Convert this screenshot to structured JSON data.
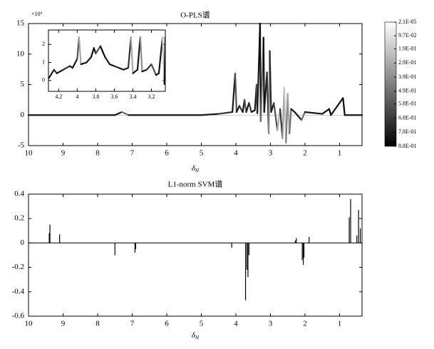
{
  "chart_data": [
    {
      "type": "line",
      "title": "O-PLS谱",
      "y_exponent_label": "×10⁹",
      "xlabel": "δ",
      "xlabel_sub": "H",
      "xlim": [
        10,
        0.35
      ],
      "xticks": [
        10,
        9,
        8,
        7,
        6,
        5,
        4,
        3,
        2,
        1
      ],
      "ylim": [
        -5,
        15
      ],
      "yticks": [
        -5,
        0,
        5,
        10,
        15
      ],
      "x": [
        10,
        7.5,
        7.3,
        7.1,
        5,
        4.5,
        4.1,
        4.02,
        3.98,
        3.9,
        3.8,
        3.75,
        3.7,
        3.62,
        3.55,
        3.45,
        3.4,
        3.38,
        3.3,
        3.28,
        3.2,
        3.18,
        3.1,
        3.05,
        3.02,
        2.98,
        2.9,
        2.8,
        2.72,
        2.65,
        2.6,
        2.55,
        2.5,
        2.45,
        2.4,
        2.3,
        2.1,
        2.0,
        1.5,
        1.3,
        1.25,
        0.9,
        0.85,
        0.35
      ],
      "values": [
        0,
        0,
        0.5,
        0,
        0,
        0.2,
        0.5,
        6.8,
        0.5,
        1.5,
        0.5,
        2.5,
        0.5,
        2,
        0.5,
        0.8,
        5,
        0.3,
        15,
        -1,
        12.7,
        0.5,
        7,
        -3,
        10.5,
        0.5,
        2,
        -2.5,
        1,
        -3.8,
        4.5,
        -4.5,
        3.5,
        -3,
        1,
        0.5,
        -0.8,
        0.5,
        0.2,
        1,
        0,
        2.8,
        0,
        0
      ],
      "correlation": [
        0.8,
        0.8,
        0.5,
        0.8,
        0.8,
        0.7,
        0.8,
        0.6,
        0.8,
        0.7,
        0.8,
        0.6,
        0.8,
        0.7,
        0.8,
        0.8,
        0.6,
        0.8,
        0.85,
        0.5,
        0.85,
        0.8,
        0.7,
        0.4,
        0.75,
        0.8,
        0.6,
        0.3,
        0.7,
        0.35,
        0.2,
        0.45,
        0.3,
        0.5,
        0.8,
        0.8,
        0.5,
        0.8,
        0.8,
        0.85,
        0.8,
        0.85,
        0.8,
        0.8
      ],
      "colorbar": {
        "clim": [
          2.1e-05,
          0.88
        ],
        "ticks": [
          {
            "value": 2.1e-05,
            "label": "2.1E-05"
          },
          {
            "value": 0.097,
            "label": "9.7E-02"
          },
          {
            "value": 0.19,
            "label": "1.9E-01"
          },
          {
            "value": 0.29,
            "label": "2.9E-01"
          },
          {
            "value": 0.39,
            "label": "3.9E-01"
          },
          {
            "value": 0.49,
            "label": "4.9E-01"
          },
          {
            "value": 0.58,
            "label": "5.8E-01"
          },
          {
            "value": 0.68,
            "label": "6.8E-01"
          },
          {
            "value": 0.78,
            "label": "7.8E-01"
          },
          {
            "value": 0.88,
            "label": "8.8E-01"
          }
        ]
      },
      "inset": {
        "xlim": [
          4.31,
          3.05
        ],
        "xticks": [
          4.2,
          4.0,
          3.8,
          3.6,
          3.4,
          3.2
        ],
        "ylim": [
          -0.6,
          2.8
        ],
        "yticks": [
          0,
          1,
          2
        ],
        "x": [
          4.31,
          4.25,
          4.22,
          4.15,
          4.08,
          4.05,
          4.0,
          3.98,
          3.96,
          3.9,
          3.85,
          3.82,
          3.8,
          3.75,
          3.7,
          3.65,
          3.6,
          3.55,
          3.5,
          3.45,
          3.42,
          3.4,
          3.35,
          3.32,
          3.3,
          3.25,
          3.2,
          3.15,
          3.12,
          3.08,
          3.06,
          3.05
        ],
        "values": [
          0.1,
          0.6,
          0.4,
          0.6,
          0.8,
          0.7,
          1.2,
          2.4,
          0.9,
          1.0,
          1.3,
          1.8,
          1.5,
          1.9,
          1.3,
          0.9,
          0.8,
          0.7,
          0.6,
          0.7,
          2.4,
          0.4,
          0.6,
          2.4,
          0.5,
          0.6,
          0.9,
          0.3,
          0.4,
          2.4,
          -0.2,
          2.4
        ],
        "correlation": [
          0.8,
          0.7,
          0.8,
          0.7,
          0.8,
          0.8,
          0.6,
          0.3,
          0.8,
          0.8,
          0.85,
          0.8,
          0.6,
          0.85,
          0.8,
          0.8,
          0.75,
          0.8,
          0.8,
          0.7,
          0.3,
          0.8,
          0.8,
          0.4,
          0.8,
          0.7,
          0.6,
          0.8,
          0.8,
          0.2,
          0.8,
          0.5
        ]
      }
    },
    {
      "type": "stem",
      "title": "L1-norm SVM谱",
      "xlabel": "δ",
      "xlabel_sub": "H",
      "color": "#000000",
      "xlim": [
        10,
        0.35
      ],
      "xticks": [
        10,
        9,
        8,
        7,
        6,
        5,
        4,
        3,
        2,
        1
      ],
      "ylim": [
        -0.6,
        0.4
      ],
      "yticks": [
        -0.6,
        -0.4,
        -0.2,
        0,
        0.2,
        0.4
      ],
      "x": [
        9.4,
        9.38,
        9.1,
        7.5,
        6.92,
        6.9,
        4.12,
        3.72,
        3.68,
        3.65,
        3.62,
        2.28,
        2.25,
        2.08,
        2.05,
        2.03,
        1.88,
        0.72,
        0.68,
        0.5,
        0.45,
        0.4
      ],
      "values": [
        0.08,
        0.15,
        0.07,
        -0.1,
        -0.08,
        -0.05,
        -0.04,
        -0.47,
        -0.22,
        -0.28,
        -0.1,
        0.02,
        0.04,
        -0.14,
        -0.18,
        -0.12,
        0.05,
        0.21,
        0.36,
        0.06,
        0.27,
        0.12
      ]
    }
  ]
}
